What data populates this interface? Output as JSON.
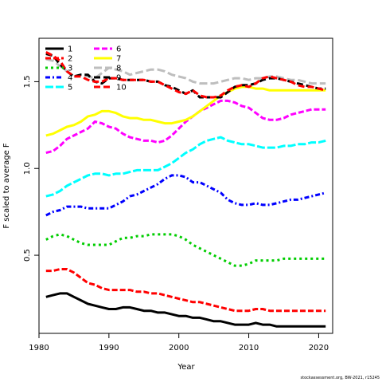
{
  "chart_data": {
    "type": "line",
    "title": "",
    "xlabel": "Year",
    "ylabel": "F scaled to average F",
    "xlim": [
      1980,
      2022
    ],
    "ylim": [
      0.05,
      1.75
    ],
    "xticks": [
      1980,
      1990,
      2000,
      2010,
      2020
    ],
    "yticks": [
      0.5,
      1.0,
      1.5
    ],
    "ytick_labels": [
      "0.5",
      "1.0",
      "1.5"
    ],
    "grid": false,
    "legend_position": "top-left",
    "x": [
      1981,
      1982,
      1983,
      1984,
      1985,
      1986,
      1987,
      1988,
      1989,
      1990,
      1991,
      1992,
      1993,
      1994,
      1995,
      1996,
      1997,
      1998,
      1999,
      2000,
      2001,
      2002,
      2003,
      2004,
      2005,
      2006,
      2007,
      2008,
      2009,
      2010,
      2011,
      2012,
      2013,
      2014,
      2015,
      2016,
      2017,
      2018,
      2019,
      2020,
      2021
    ],
    "series": [
      {
        "name": "1",
        "color": "#000000",
        "dash": "",
        "values": [
          0.26,
          0.27,
          0.28,
          0.28,
          0.26,
          0.24,
          0.22,
          0.21,
          0.2,
          0.19,
          0.19,
          0.2,
          0.2,
          0.19,
          0.18,
          0.18,
          0.17,
          0.17,
          0.16,
          0.15,
          0.15,
          0.14,
          0.14,
          0.13,
          0.12,
          0.12,
          0.11,
          0.1,
          0.1,
          0.1,
          0.11,
          0.1,
          0.1,
          0.09,
          0.09,
          0.09,
          0.09,
          0.09,
          0.09,
          0.09,
          0.09
        ]
      },
      {
        "name": "2",
        "color": "#ff0000",
        "dash": "7,3",
        "values": [
          0.41,
          0.41,
          0.42,
          0.42,
          0.4,
          0.37,
          0.34,
          0.33,
          0.31,
          0.3,
          0.3,
          0.3,
          0.3,
          0.29,
          0.29,
          0.28,
          0.28,
          0.27,
          0.26,
          0.25,
          0.24,
          0.23,
          0.23,
          0.22,
          0.21,
          0.2,
          0.19,
          0.18,
          0.18,
          0.18,
          0.19,
          0.19,
          0.18,
          0.18,
          0.18,
          0.18,
          0.18,
          0.18,
          0.18,
          0.18,
          0.18
        ]
      },
      {
        "name": "3",
        "color": "#00cd00",
        "dash": "3,4",
        "values": [
          0.59,
          0.61,
          0.62,
          0.61,
          0.59,
          0.57,
          0.56,
          0.56,
          0.56,
          0.56,
          0.58,
          0.6,
          0.6,
          0.61,
          0.61,
          0.62,
          0.62,
          0.62,
          0.62,
          0.61,
          0.59,
          0.56,
          0.54,
          0.52,
          0.5,
          0.48,
          0.46,
          0.44,
          0.44,
          0.45,
          0.47,
          0.47,
          0.47,
          0.47,
          0.48,
          0.48,
          0.48,
          0.48,
          0.48,
          0.48,
          0.48
        ]
      },
      {
        "name": "4",
        "color": "#0000ff",
        "dash": "6,3,2,3",
        "values": [
          0.73,
          0.75,
          0.76,
          0.78,
          0.78,
          0.78,
          0.77,
          0.77,
          0.77,
          0.77,
          0.79,
          0.81,
          0.84,
          0.85,
          0.87,
          0.89,
          0.91,
          0.94,
          0.96,
          0.96,
          0.95,
          0.92,
          0.92,
          0.9,
          0.88,
          0.86,
          0.82,
          0.8,
          0.79,
          0.79,
          0.8,
          0.79,
          0.79,
          0.8,
          0.81,
          0.82,
          0.82,
          0.83,
          0.84,
          0.85,
          0.86
        ]
      },
      {
        "name": "5",
        "color": "#00ffff",
        "dash": "10,3",
        "values": [
          0.84,
          0.85,
          0.87,
          0.9,
          0.92,
          0.94,
          0.96,
          0.97,
          0.97,
          0.96,
          0.97,
          0.97,
          0.98,
          0.99,
          0.99,
          0.99,
          0.99,
          1.01,
          1.03,
          1.06,
          1.09,
          1.11,
          1.14,
          1.16,
          1.17,
          1.18,
          1.16,
          1.15,
          1.14,
          1.14,
          1.13,
          1.12,
          1.12,
          1.12,
          1.13,
          1.13,
          1.14,
          1.14,
          1.15,
          1.15,
          1.16
        ]
      },
      {
        "name": "6",
        "color": "#ff00ff",
        "dash": "7,3",
        "values": [
          1.09,
          1.1,
          1.13,
          1.17,
          1.19,
          1.21,
          1.23,
          1.27,
          1.26,
          1.24,
          1.23,
          1.2,
          1.18,
          1.17,
          1.16,
          1.16,
          1.15,
          1.16,
          1.19,
          1.23,
          1.27,
          1.3,
          1.33,
          1.35,
          1.37,
          1.39,
          1.39,
          1.38,
          1.36,
          1.35,
          1.32,
          1.29,
          1.28,
          1.28,
          1.29,
          1.31,
          1.32,
          1.33,
          1.34,
          1.34,
          1.34
        ]
      },
      {
        "name": "7",
        "color": "#ffff00",
        "dash": "",
        "values": [
          1.19,
          1.2,
          1.22,
          1.24,
          1.25,
          1.27,
          1.3,
          1.31,
          1.33,
          1.33,
          1.32,
          1.3,
          1.29,
          1.29,
          1.28,
          1.28,
          1.27,
          1.26,
          1.26,
          1.27,
          1.28,
          1.3,
          1.33,
          1.36,
          1.39,
          1.42,
          1.44,
          1.46,
          1.47,
          1.47,
          1.46,
          1.46,
          1.45,
          1.45,
          1.45,
          1.45,
          1.45,
          1.45,
          1.45,
          1.45,
          1.45
        ]
      },
      {
        "name": "8",
        "color": "#bebebe",
        "dash": "10,4",
        "values": [
          1.63,
          1.62,
          1.59,
          1.56,
          1.53,
          1.54,
          1.53,
          1.52,
          1.55,
          1.58,
          1.57,
          1.56,
          1.54,
          1.55,
          1.56,
          1.57,
          1.57,
          1.56,
          1.54,
          1.53,
          1.52,
          1.5,
          1.49,
          1.49,
          1.49,
          1.5,
          1.51,
          1.52,
          1.52,
          1.51,
          1.52,
          1.52,
          1.53,
          1.53,
          1.52,
          1.51,
          1.51,
          1.5,
          1.49,
          1.49,
          1.49
        ]
      },
      {
        "name": "9",
        "color": "#000000",
        "dash": "8,4",
        "values": [
          1.66,
          1.65,
          1.6,
          1.56,
          1.53,
          1.54,
          1.54,
          1.5,
          1.49,
          1.52,
          1.52,
          1.51,
          1.51,
          1.51,
          1.51,
          1.5,
          1.5,
          1.48,
          1.47,
          1.45,
          1.43,
          1.45,
          1.41,
          1.41,
          1.41,
          1.41,
          1.44,
          1.47,
          1.48,
          1.48,
          1.49,
          1.51,
          1.52,
          1.52,
          1.51,
          1.5,
          1.49,
          1.48,
          1.47,
          1.46,
          1.46
        ]
      },
      {
        "name": "10",
        "color": "#ff0000",
        "dash": "8,4",
        "values": [
          1.67,
          1.65,
          1.62,
          1.56,
          1.53,
          1.53,
          1.51,
          1.5,
          1.5,
          1.52,
          1.52,
          1.51,
          1.51,
          1.51,
          1.51,
          1.5,
          1.5,
          1.48,
          1.46,
          1.44,
          1.43,
          1.45,
          1.42,
          1.41,
          1.41,
          1.42,
          1.45,
          1.47,
          1.48,
          1.47,
          1.49,
          1.52,
          1.53,
          1.52,
          1.51,
          1.5,
          1.48,
          1.47,
          1.47,
          1.46,
          1.45
        ]
      }
    ]
  },
  "footer": "stockassessment.org, BW-2021, r15245"
}
